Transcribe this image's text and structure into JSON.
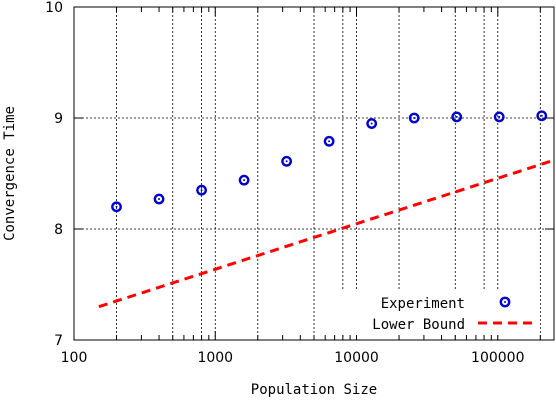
{
  "chart_data": {
    "type": "scatter",
    "xlabel": "Population Size",
    "ylabel": "Convergence Time",
    "x_scale": "log",
    "xlim": [
      100,
      250000
    ],
    "ylim": [
      7,
      10
    ],
    "x_ticks": [
      100,
      1000,
      10000,
      100000
    ],
    "x_tick_labels": [
      "100",
      "1000",
      "10000",
      "100000"
    ],
    "y_ticks": [
      7,
      8,
      9,
      10
    ],
    "y_tick_labels": [
      "7",
      "8",
      "9",
      "10"
    ],
    "x_grid_lines": [
      200,
      500,
      800,
      1000,
      2000,
      5000,
      8000,
      10000,
      20000,
      50000,
      80000,
      100000,
      200000
    ],
    "y_grid_lines": [
      8,
      9
    ],
    "grid": true,
    "legend_position": "bottom-right",
    "series": [
      {
        "name": "Experiment",
        "kind": "points",
        "color": "#0000cc",
        "marker": "circle-dot",
        "x": [
          200,
          400,
          800,
          1600,
          3200,
          6400,
          12800,
          25600,
          51200,
          102400,
          204800
        ],
        "y": [
          8.2,
          8.27,
          8.35,
          8.44,
          8.61,
          8.79,
          8.95,
          9.0,
          9.01,
          9.01,
          9.02
        ]
      },
      {
        "name": "Lower Bound",
        "kind": "dashed-line",
        "color": "#ff0000",
        "x": [
          150,
          250000
        ],
        "y": [
          7.3,
          8.62
        ]
      }
    ]
  }
}
